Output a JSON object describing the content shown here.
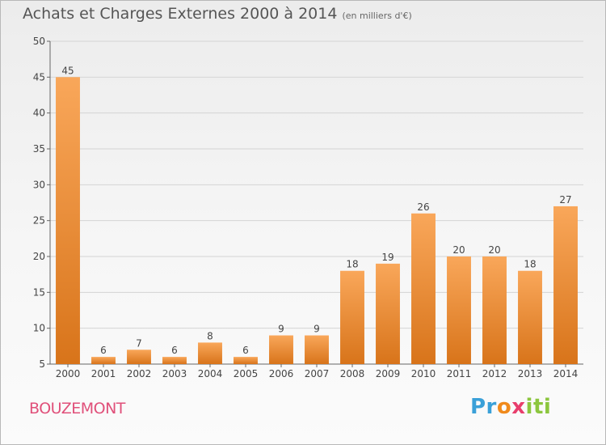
{
  "title": "Achats et Charges Externes 2000 à 2014",
  "unit_note": "(en milliers d'€)",
  "commune": "BOUZEMONT",
  "brand": {
    "p1": "Pr",
    "p2": "o",
    "p3": "x",
    "p4": "iti"
  },
  "colors": {
    "bar_light": "#f9a75a",
    "bar_dark": "#d8741a",
    "grid": "#d4d4d4",
    "axis": "#666666",
    "text": "#444444"
  },
  "chart_data": {
    "type": "bar",
    "title": "Achats et Charges Externes 2000 à 2014",
    "subtitle": "(en milliers d'€)",
    "categories": [
      "2000",
      "2001",
      "2002",
      "2003",
      "2004",
      "2005",
      "2006",
      "2007",
      "2008",
      "2009",
      "2010",
      "2011",
      "2012",
      "2013",
      "2014"
    ],
    "values": [
      45,
      6,
      7,
      6,
      8,
      6,
      9,
      9,
      18,
      19,
      26,
      20,
      20,
      18,
      27
    ],
    "ylim": [
      5,
      50
    ],
    "yticks": [
      5,
      10,
      15,
      20,
      25,
      30,
      35,
      40,
      45,
      50
    ],
    "grid": true,
    "legend": "none"
  }
}
